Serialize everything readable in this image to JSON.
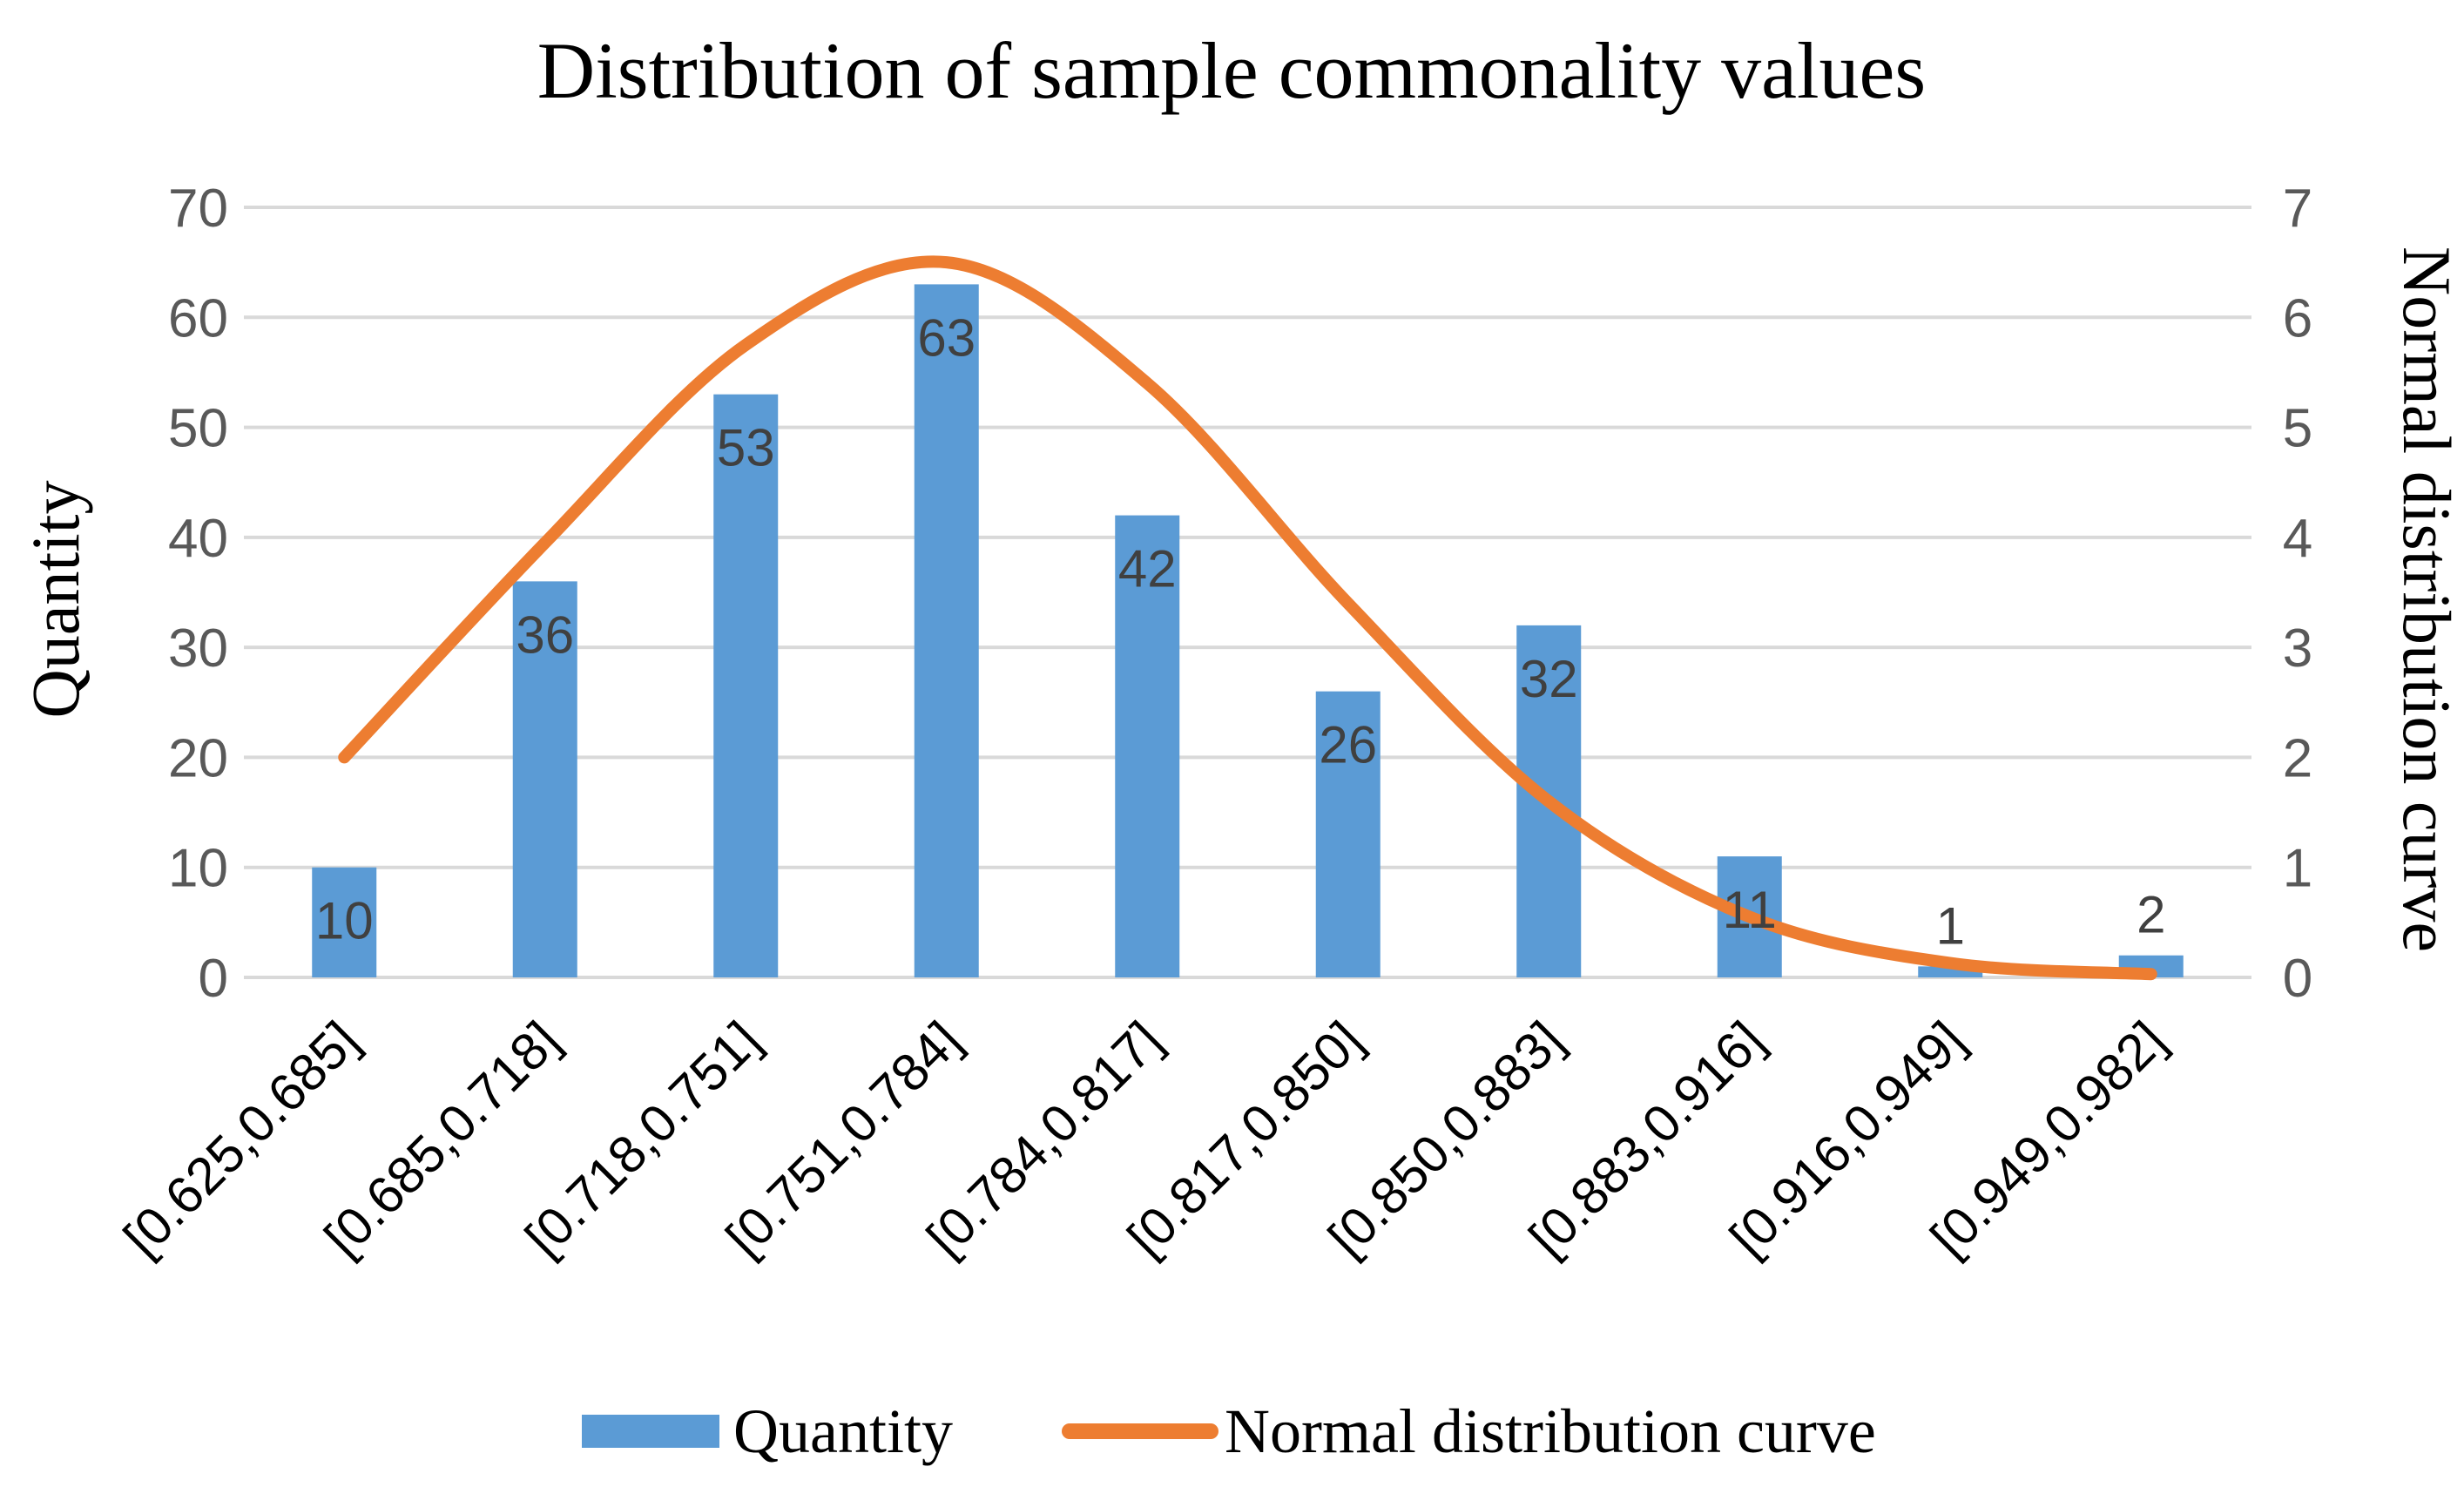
{
  "chart_data": {
    "type": "bar",
    "title": "Distribution of sample commonality values",
    "xlabel": "",
    "ylabel": "Quantity",
    "y2label": "Normal distribution curve",
    "categories": [
      "[0.625,0.685]",
      "[0.685,0.718]",
      "[0.718,0.751]",
      "[0.751,0.784]",
      "[0.784,0.817]",
      "[0.817,0.850]",
      "[0.850,0.883]",
      "[0.883,0.916]",
      "[0.916,0.949]",
      "[0.949,0.982]"
    ],
    "ylim": [
      0,
      70
    ],
    "y2lim": [
      0,
      7
    ],
    "yticks": [
      0,
      10,
      20,
      30,
      40,
      50,
      60,
      70
    ],
    "y2ticks": [
      0,
      1,
      2,
      3,
      4,
      5,
      6,
      7
    ],
    "grid": true,
    "legend_position": "bottom",
    "series": [
      {
        "name": "Quantity",
        "type": "bar",
        "axis": "left",
        "color": "#5b9bd5",
        "values": [
          10,
          36,
          53,
          63,
          42,
          26,
          32,
          11,
          1,
          2
        ],
        "data_labels": [
          "10",
          "36",
          "53",
          "63",
          "42",
          "26",
          "32",
          "11",
          "1",
          "2"
        ]
      },
      {
        "name": "Normal distribution curve",
        "type": "line",
        "axis": "right",
        "smooth": true,
        "color": "#ed7d31",
        "values": [
          2.0,
          3.95,
          5.75,
          6.5,
          5.4,
          3.4,
          1.6,
          0.55,
          0.13,
          0.03
        ]
      }
    ]
  }
}
